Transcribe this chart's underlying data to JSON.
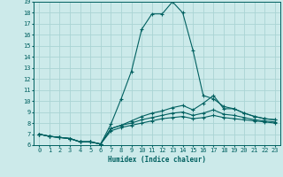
{
  "xlabel": "Humidex (Indice chaleur)",
  "ylabel": "",
  "background_color": "#cceaea",
  "grid_color": "#aad4d4",
  "line_color": "#006060",
  "xlim": [
    -0.5,
    23.5
  ],
  "ylim": [
    6,
    19
  ],
  "xticks": [
    0,
    1,
    2,
    3,
    4,
    5,
    6,
    7,
    8,
    9,
    10,
    11,
    12,
    13,
    14,
    15,
    16,
    17,
    18,
    19,
    20,
    21,
    22,
    23
  ],
  "yticks": [
    6,
    7,
    8,
    9,
    10,
    11,
    12,
    13,
    14,
    15,
    16,
    17,
    18,
    19
  ],
  "lines": [
    {
      "x": [
        0,
        1,
        2,
        3,
        4,
        5,
        6,
        7,
        8,
        9,
        10,
        11,
        12,
        13,
        14,
        15,
        16,
        17,
        18,
        19,
        20,
        21,
        22,
        23
      ],
      "y": [
        7.0,
        6.8,
        6.7,
        6.6,
        6.3,
        6.3,
        6.1,
        7.9,
        10.2,
        12.7,
        16.5,
        17.9,
        17.9,
        19.0,
        18.0,
        14.6,
        10.5,
        10.2,
        9.5,
        9.3,
        8.9,
        8.6,
        8.4,
        8.3
      ]
    },
    {
      "x": [
        0,
        1,
        2,
        3,
        4,
        5,
        6,
        7,
        8,
        9,
        10,
        11,
        12,
        13,
        14,
        15,
        16,
        17,
        18,
        19,
        20,
        21,
        22,
        23
      ],
      "y": [
        7.0,
        6.8,
        6.7,
        6.6,
        6.3,
        6.3,
        6.1,
        7.5,
        7.8,
        8.2,
        8.6,
        8.9,
        9.1,
        9.4,
        9.6,
        9.2,
        9.8,
        10.5,
        9.3,
        9.3,
        8.9,
        8.6,
        8.4,
        8.3
      ]
    },
    {
      "x": [
        0,
        1,
        2,
        3,
        4,
        5,
        6,
        7,
        8,
        9,
        10,
        11,
        12,
        13,
        14,
        15,
        16,
        17,
        18,
        19,
        20,
        21,
        22,
        23
      ],
      "y": [
        7.0,
        6.8,
        6.7,
        6.6,
        6.3,
        6.3,
        6.1,
        7.5,
        7.8,
        8.0,
        8.3,
        8.5,
        8.7,
        8.9,
        9.0,
        8.7,
        8.9,
        9.2,
        8.8,
        8.7,
        8.5,
        8.3,
        8.2,
        8.1
      ]
    },
    {
      "x": [
        0,
        1,
        2,
        3,
        4,
        5,
        6,
        7,
        8,
        9,
        10,
        11,
        12,
        13,
        14,
        15,
        16,
        17,
        18,
        19,
        20,
        21,
        22,
        23
      ],
      "y": [
        7.0,
        6.8,
        6.7,
        6.6,
        6.3,
        6.3,
        6.1,
        7.3,
        7.6,
        7.8,
        8.0,
        8.2,
        8.4,
        8.5,
        8.6,
        8.4,
        8.5,
        8.7,
        8.5,
        8.4,
        8.3,
        8.2,
        8.1,
        8.0
      ]
    }
  ]
}
